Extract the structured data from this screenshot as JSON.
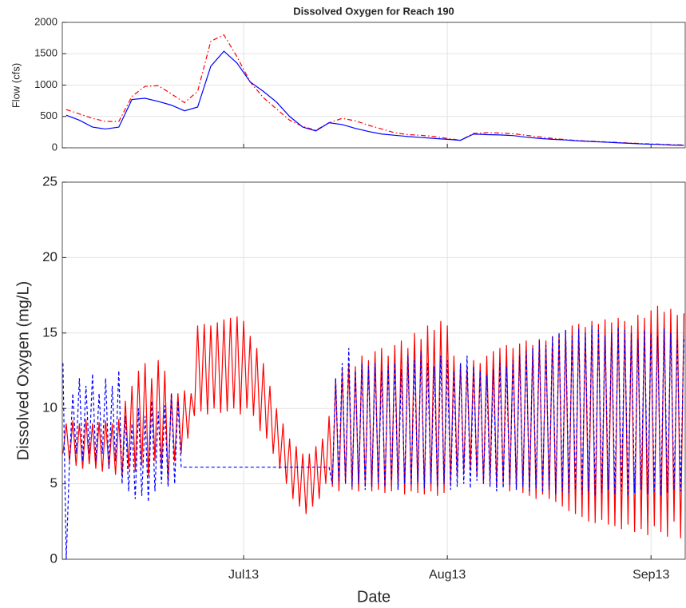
{
  "chart_data": [
    {
      "type": "line",
      "title": "Dissolved Oxygen for Reach 190",
      "ylabel": "Flow (cfs)",
      "x": [
        -27,
        -25,
        -23,
        -21,
        -19,
        -17,
        -15,
        -13,
        -11,
        -9,
        -7,
        -5,
        -3,
        -1,
        1,
        3,
        5,
        7,
        9,
        11,
        13,
        15,
        17,
        19,
        21,
        23,
        25,
        27,
        29,
        31,
        33,
        35,
        37,
        39,
        41,
        43,
        45,
        47,
        49,
        51,
        53,
        55,
        57,
        59,
        61,
        63,
        65,
        67
      ],
      "series": [
        {
          "color": "#ff0000",
          "linestyle": "dashdot",
          "values": [
            610,
            540,
            470,
            420,
            420,
            820,
            980,
            990,
            860,
            720,
            900,
            1700,
            1800,
            1450,
            1050,
            800,
            620,
            440,
            340,
            280,
            400,
            470,
            430,
            360,
            300,
            240,
            210,
            200,
            180,
            150,
            120,
            230,
            240,
            235,
            225,
            200,
            175,
            150,
            130,
            115,
            105,
            95,
            85,
            75,
            65,
            60,
            50,
            45
          ]
        },
        {
          "color": "#0000ff",
          "linestyle": "solid",
          "values": [
            520,
            440,
            330,
            300,
            330,
            770,
            790,
            740,
            680,
            590,
            650,
            1300,
            1540,
            1350,
            1050,
            900,
            730,
            500,
            330,
            270,
            400,
            370,
            310,
            260,
            220,
            200,
            180,
            165,
            150,
            135,
            120,
            220,
            210,
            205,
            195,
            170,
            150,
            135,
            125,
            110,
            100,
            90,
            80,
            70,
            60,
            55,
            45,
            40
          ]
        }
      ],
      "xlim": [
        -27.6,
        67.2
      ],
      "ylim": [
        0,
        2000
      ],
      "yticks": [
        0,
        500,
        1000,
        1500,
        2000
      ],
      "grid": true
    },
    {
      "type": "line",
      "xlabel": "Date",
      "ylabel": "Dissolved Oxygen (mg/L)",
      "x": [
        -27.5,
        -27,
        -26.5,
        -26,
        -25.5,
        -25,
        -24.5,
        -24,
        -23.5,
        -23,
        -22.5,
        -22,
        -21.5,
        -21,
        -20.5,
        -20,
        -19.5,
        -19,
        -18.5,
        -18,
        -17.5,
        -17,
        -16.5,
        -16,
        -15.5,
        -15,
        -14.5,
        -14,
        -13.5,
        -13,
        -12.5,
        -12,
        -11.5,
        -11,
        -10.5,
        -10,
        -9.5,
        -9,
        -8.5,
        -8,
        -7.5,
        -7,
        -6.5,
        -6,
        -5.5,
        -5,
        -4.5,
        -4,
        -3.5,
        -3,
        -2.5,
        -2,
        -1.5,
        -1,
        -0.5,
        0,
        0.5,
        1,
        1.5,
        2,
        2.5,
        3,
        3.5,
        4,
        4.5,
        5,
        5.5,
        6,
        6.5,
        7,
        7.5,
        8,
        8.5,
        9,
        9.5,
        10,
        10.5,
        11,
        11.5,
        12,
        12.5,
        13,
        13.5,
        14,
        14.5,
        15,
        15.5,
        16,
        16.5,
        17,
        17.5,
        18,
        18.5,
        19,
        19.5,
        20,
        20.5,
        21,
        21.5,
        22,
        22.5,
        23,
        23.5,
        24,
        24.5,
        25,
        25.5,
        26,
        26.5,
        27,
        27.5,
        28,
        28.5,
        29,
        29.5,
        30,
        30.5,
        31,
        31.5,
        32,
        32.5,
        33,
        33.5,
        34,
        34.5,
        35,
        35.5,
        36,
        36.5,
        37,
        37.5,
        38,
        38.5,
        39,
        39.5,
        40,
        40.5,
        41,
        41.5,
        42,
        42.5,
        43,
        43.5,
        44,
        44.5,
        45,
        45.5,
        46,
        46.5,
        47,
        47.5,
        48,
        48.5,
        49,
        49.5,
        50,
        50.5,
        51,
        51.5,
        52,
        52.5,
        53,
        53.5,
        54,
        54.5,
        55,
        55.5,
        56,
        56.5,
        57,
        57.5,
        58,
        58.5,
        59,
        59.5,
        60,
        60.5,
        61,
        61.5,
        62,
        62.5,
        63,
        63.5,
        64,
        64.5,
        65,
        65.5,
        66,
        66.5,
        67
      ],
      "series": [
        {
          "color": "#ff0000",
          "linestyle": "solid",
          "values": [
            7,
            9,
            6.5,
            9.2,
            6.2,
            9,
            6,
            9.3,
            6.3,
            9,
            6,
            9.1,
            5.8,
            9.2,
            6,
            9,
            5.6,
            9.3,
            5.5,
            10.5,
            6,
            11.5,
            5.8,
            12.5,
            6.2,
            13,
            5.5,
            12,
            6.5,
            13.2,
            6,
            12.5,
            5,
            11,
            6.5,
            11,
            7,
            11.2,
            8,
            11,
            9.5,
            15.5,
            9.8,
            15.6,
            9.6,
            15.5,
            10,
            15.7,
            9.7,
            15.9,
            9.8,
            16,
            10,
            16.1,
            9.6,
            15.8,
            10,
            14.8,
            9.5,
            14,
            8.5,
            13,
            8,
            11.5,
            7,
            10,
            6,
            9,
            5,
            8,
            4,
            7.5,
            3.5,
            7,
            3,
            7,
            3.5,
            7.5,
            4,
            8,
            5,
            9.5,
            4.8,
            12,
            4.5,
            12.5,
            5,
            13,
            4.6,
            12.8,
            4.5,
            13.5,
            4.8,
            13.2,
            4.5,
            13.8,
            4.6,
            14,
            4.4,
            13.5,
            4.5,
            14.2,
            4.6,
            14.5,
            4.3,
            14,
            4.5,
            15,
            4.4,
            14.6,
            4.3,
            15.5,
            4.5,
            15.2,
            4.2,
            15.8,
            4.4,
            15.5,
            5,
            13.5,
            5.5,
            13,
            5.8,
            12.8,
            6,
            13.2,
            5.5,
            13,
            5,
            13.5,
            5.2,
            13.8,
            4.8,
            14,
            5,
            14.2,
            4.5,
            14,
            4.6,
            14.3,
            4.4,
            14.5,
            4.2,
            14.2,
            4,
            14.6,
            4.3,
            14.5,
            4,
            14.8,
            3.8,
            15,
            3.5,
            15.2,
            3.2,
            15.5,
            3,
            15.6,
            2.8,
            15.4,
            2.5,
            15.8,
            2.4,
            15.6,
            2.6,
            15.9,
            2.3,
            15.7,
            2.2,
            16,
            2,
            15.8,
            2.3,
            15.5,
            1.8,
            16.2,
            2,
            16,
            1.6,
            16.5,
            2.2,
            16.8,
            1.8,
            16.4,
            1.5,
            16.6,
            2.5,
            16.2,
            1.4,
            16.3
          ]
        },
        {
          "color": "#0000ff",
          "linestyle": "dashed",
          "values": [
            13,
            0,
            6.5,
            11,
            7,
            12,
            6.5,
            11.5,
            7,
            12.3,
            6.5,
            11,
            7,
            12,
            6,
            11.5,
            6.5,
            12.5,
            5,
            9.5,
            4.5,
            9,
            4,
            10,
            4.2,
            9.5,
            3.8,
            10.5,
            4.5,
            9.8,
            5,
            10.2,
            4.8,
            11,
            5,
            10.5,
            6.1,
            6.1,
            6.1,
            6.1,
            6.1,
            6.1,
            6.1,
            6.1,
            6.1,
            6.1,
            6.1,
            6.1,
            6.1,
            6.1,
            6.1,
            6.1,
            6.1,
            6.1,
            6.1,
            6.1,
            6.1,
            6.1,
            6.1,
            6.1,
            6.1,
            6.1,
            6.1,
            6.1,
            6.1,
            6.1,
            6.1,
            6.1,
            6.1,
            6.1,
            6.1,
            6.1,
            6.1,
            6.1,
            6.1,
            6.1,
            6.1,
            6.1,
            6.1,
            6.1,
            6.1,
            6.1,
            5,
            12,
            5.2,
            13,
            5,
            14,
            4.8,
            12.5,
            5,
            13,
            4.6,
            12.8,
            4.8,
            13,
            5,
            12.5,
            4.8,
            12.8,
            5.2,
            13,
            4.6,
            12.6,
            5,
            13.5,
            4.9,
            13.2,
            5.1,
            13.8,
            4.7,
            13,
            5,
            12.8,
            4.8,
            13.5,
            5,
            13.2,
            4.6,
            12.5,
            4.8,
            13,
            5,
            13.5,
            4.7,
            12.8,
            5.2,
            12.5,
            5,
            12.2,
            4.8,
            12.6,
            4.5,
            13,
            4.7,
            12.8,
            4.9,
            13.2,
            4.6,
            13.5,
            4.8,
            13.8,
            4.5,
            14,
            4.7,
            14.5,
            4.4,
            14.2,
            4.6,
            14.8,
            4.3,
            15,
            4.5,
            15.2,
            4.4,
            14.8,
            4.6,
            15.3,
            4.3,
            15,
            4.5,
            15.5,
            4.2,
            15.2,
            4.4,
            14.8,
            4.6,
            15,
            4.3,
            15.4,
            4.5,
            15.2,
            4.2,
            15,
            4.4,
            14.6,
            4.6,
            15.2,
            4.3,
            15,
            4.5,
            14.8,
            4.2,
            15.3,
            4.4,
            15,
            4.6,
            14.5,
            4.5,
            14.8
          ]
        }
      ],
      "xlim": [
        -27.6,
        67.2
      ],
      "ylim": [
        0,
        25
      ],
      "yticks": [
        0,
        5,
        10,
        15,
        20,
        25
      ],
      "xticks": [
        {
          "value": 0,
          "label": "Jul13"
        },
        {
          "value": 31,
          "label": "Aug13"
        },
        {
          "value": 62,
          "label": "Sep13"
        }
      ],
      "grid": true
    }
  ]
}
